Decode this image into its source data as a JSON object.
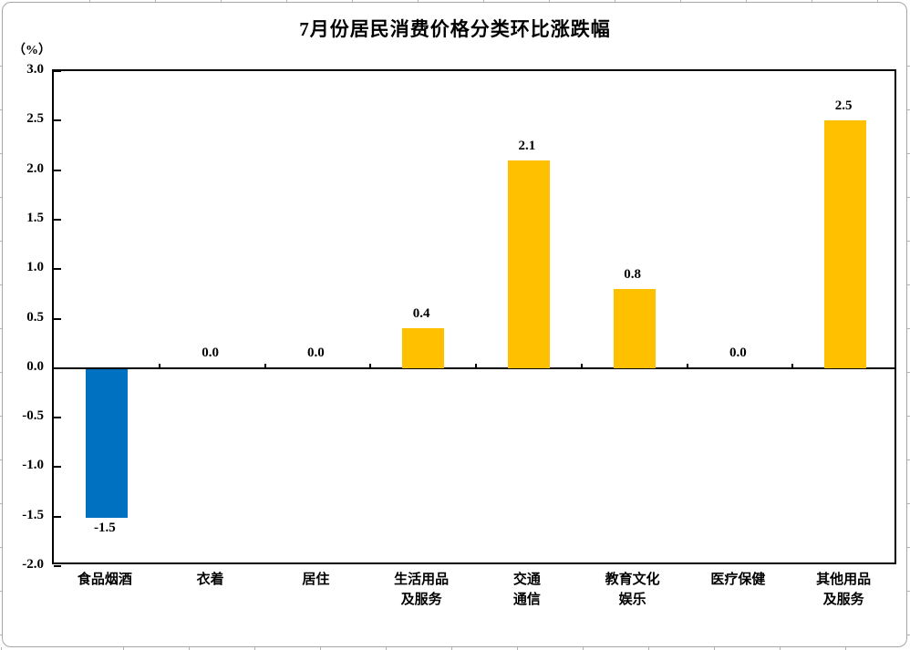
{
  "chart": {
    "title": "7月份居民消费价格分类环比涨跌幅",
    "unit_label": "（%）"
  },
  "chart_data": {
    "type": "bar",
    "title": "7月份居民消费价格分类环比涨跌幅",
    "unit_label": "（%）",
    "categories": [
      "食品烟酒",
      "衣着",
      "居住",
      "生活用品\n及服务",
      "交通\n通信",
      "教育文化\n娱乐",
      "医疗保健",
      "其他用品\n及服务"
    ],
    "values": [
      -1.5,
      0.0,
      0.0,
      0.4,
      2.1,
      0.8,
      0.0,
      2.5
    ],
    "data_labels": [
      "-1.5",
      "0.0",
      "0.0",
      "0.4",
      "2.1",
      "0.8",
      "0.0",
      "2.5"
    ],
    "xlabel": "",
    "ylabel": "（%）",
    "ylim": [
      -2.0,
      3.0
    ],
    "y_ticks": [
      "3.0",
      "2.5",
      "2.0",
      "1.5",
      "1.0",
      "0.5",
      "0.0",
      "-0.5",
      "-1.0",
      "-1.5",
      "-2.0"
    ],
    "grid": false,
    "legend": false,
    "colors": {
      "positive_bar": "#FFC000",
      "negative_bar": "#0070C0",
      "axis": "#000000",
      "text": "#000000"
    }
  }
}
